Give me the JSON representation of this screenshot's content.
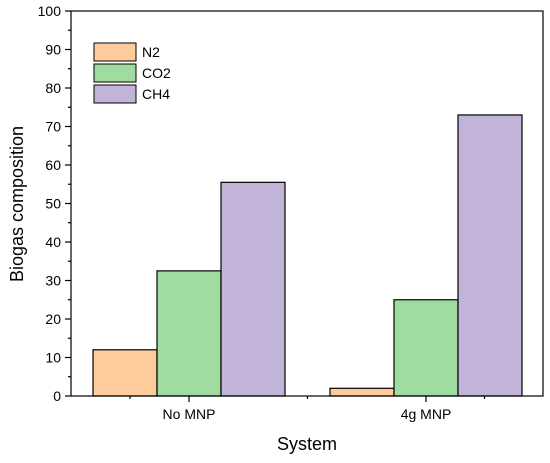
{
  "chart_data": {
    "type": "bar",
    "xlabel": "System",
    "ylabel": "Biogas composition",
    "ylim": [
      0,
      100
    ],
    "yticks": [
      0,
      10,
      20,
      30,
      40,
      50,
      60,
      70,
      80,
      90,
      100
    ],
    "categories": [
      "No MNP",
      "4g MNP"
    ],
    "series": [
      {
        "name": "N2",
        "values": [
          12,
          2
        ],
        "color": "#fdcc9a"
      },
      {
        "name": "CO2",
        "values": [
          32.5,
          25
        ],
        "color": "#a0dba0"
      },
      {
        "name": "CH4",
        "values": [
          55.5,
          73
        ],
        "color": "#c2b3d8"
      }
    ],
    "legend_position": "top-left",
    "grid": false
  }
}
